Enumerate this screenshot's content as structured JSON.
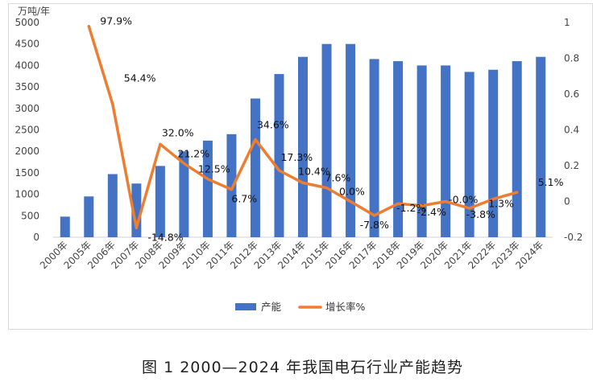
{
  "caption": "图 1 2000—2024 年我国电石行业产能趋势",
  "chart_data": {
    "type": "bar+line",
    "y_left_label": "万吨/年",
    "y_left_lim": [
      0,
      5000
    ],
    "y_left_ticks": [
      0,
      500,
      1000,
      1500,
      2000,
      2500,
      3000,
      3500,
      4000,
      4500,
      5000
    ],
    "y_right_lim": [
      -0.2,
      1
    ],
    "y_right_ticks": [
      "-0.2",
      "0",
      "0.2",
      "0.4",
      "0.6",
      "0.8",
      "1"
    ],
    "categories": [
      "2000年",
      "2005年",
      "2006年",
      "2007年",
      "2008年",
      "2009年",
      "2010年",
      "2011年",
      "2012年",
      "2013年",
      "2014年",
      "2015年",
      "2016年",
      "2017年",
      "2018年",
      "2019年",
      "2020年",
      "2021年",
      "2022年",
      "2023年",
      "2024年"
    ],
    "series": [
      {
        "name": "产能",
        "type": "bar",
        "axis": "left",
        "color": "#4472c4",
        "values": [
          480,
          950,
          1470,
          1250,
          1660,
          2000,
          2250,
          2400,
          3230,
          3800,
          4200,
          4500,
          4500,
          4150,
          4100,
          4000,
          4000,
          3850,
          3900,
          4100,
          4200
        ]
      },
      {
        "name": "增长率%",
        "type": "line",
        "axis": "right",
        "color": "#ed7d31",
        "values": [
          null,
          0.979,
          0.544,
          -0.148,
          0.32,
          0.212,
          0.125,
          0.067,
          0.346,
          0.173,
          0.104,
          0.076,
          0.0,
          -0.078,
          -0.012,
          -0.024,
          -0.0,
          -0.038,
          0.013,
          0.051,
          null
        ],
        "labels": [
          null,
          "97.9%",
          "54.4%",
          "-14.8%",
          "32.0%",
          "21.2%",
          "12.5%",
          "6.7%",
          "34.6%",
          "17.3%",
          "10.4%",
          "7.6%",
          "0.0%",
          "-7.8%",
          "-1.2%",
          "-2.4%",
          "-0.0%",
          "-3.8%",
          "1.3%",
          "5.1%",
          null
        ]
      }
    ],
    "legend": "bottom",
    "grid": false
  }
}
